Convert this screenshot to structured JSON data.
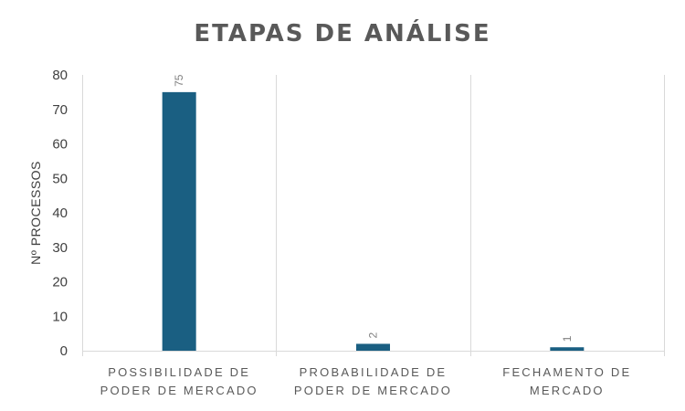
{
  "chart_data": {
    "type": "bar",
    "title": "ETAPAS DE ANÁLISE",
    "ylabel": "Nº PROCESSOS",
    "xlabel": "",
    "categories": [
      [
        "POSSIBILIDADE DE",
        "PODER DE MERCADO"
      ],
      [
        "PROBABILIDADE DE",
        "PODER DE MERCADO"
      ],
      [
        "FECHAMENTO DE",
        "MERCADO"
      ]
    ],
    "values": [
      75,
      2,
      1
    ],
    "data_labels": [
      "75",
      "2",
      "1"
    ],
    "yticks": [
      "0",
      "10",
      "20",
      "30",
      "40",
      "50",
      "60",
      "70",
      "80"
    ],
    "ylim": [
      0,
      80
    ],
    "grid": "vertical-separators",
    "legend": "none",
    "bar_color": "#1a5f82"
  }
}
